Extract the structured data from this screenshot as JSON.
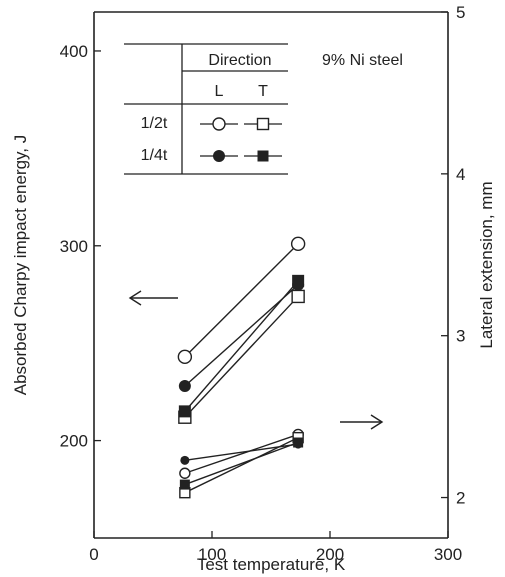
{
  "chart_data": {
    "type": "line",
    "annotation": "9% Ni steel",
    "xlabel": "Test temperature, K",
    "ylabel_left": "Absorbed Charpy impact energy, J",
    "ylabel_right": "Lateral extension, mm",
    "xlim": [
      0,
      300
    ],
    "ylim_left": [
      150,
      420
    ],
    "ylim_right": [
      1.75,
      5
    ],
    "x_ticks": [
      "0",
      "100",
      "200",
      "300"
    ],
    "y_left_ticks": [
      "200",
      "300",
      "400"
    ],
    "y_right_ticks": [
      "2",
      "3",
      "4",
      "5"
    ],
    "legend": {
      "header": "Direction",
      "columns": [
        "L",
        "T"
      ],
      "rows": [
        "1/2t",
        "1/4t"
      ]
    },
    "energy_series": [
      {
        "position": "1/2t",
        "direction": "L",
        "marker": "circle-open",
        "x": [
          77,
          173
        ],
        "y": [
          243,
          301
        ]
      },
      {
        "position": "1/4t",
        "direction": "L",
        "marker": "circle-filled",
        "x": [
          77,
          173
        ],
        "y": [
          228,
          280
        ]
      },
      {
        "position": "1/2t",
        "direction": "T",
        "marker": "square-open",
        "x": [
          77,
          173
        ],
        "y": [
          212,
          274
        ]
      },
      {
        "position": "1/4t",
        "direction": "T",
        "marker": "square-filled",
        "x": [
          77,
          173
        ],
        "y": [
          215,
          282
        ]
      }
    ],
    "lateral_series": [
      {
        "position": "1/2t",
        "direction": "L",
        "marker": "circle-open",
        "x": [
          77,
          173
        ],
        "y": [
          2.15,
          2.39
        ]
      },
      {
        "position": "1/4t",
        "direction": "L",
        "marker": "circle-filled",
        "x": [
          77,
          173
        ],
        "y": [
          2.23,
          2.33
        ]
      },
      {
        "position": "1/2t",
        "direction": "T",
        "marker": "square-open",
        "x": [
          77,
          173
        ],
        "y": [
          2.03,
          2.37
        ]
      },
      {
        "position": "1/4t",
        "direction": "T",
        "marker": "square-filled",
        "x": [
          77,
          173
        ],
        "y": [
          2.08,
          2.34
        ]
      }
    ]
  }
}
